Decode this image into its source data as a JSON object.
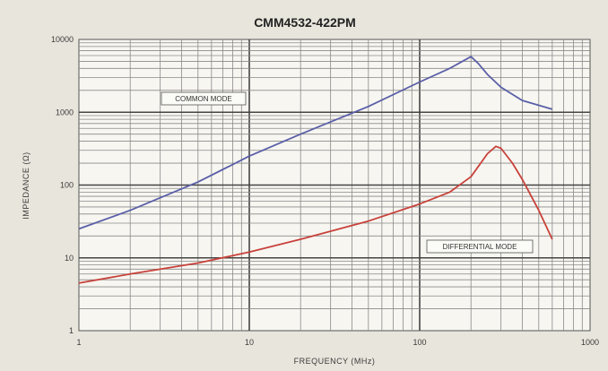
{
  "chart_data": {
    "type": "line",
    "title": "CMM4532-422PM",
    "xlabel": "FREQUENCY (MHz)",
    "ylabel": "IMPEDANCE (Ω)",
    "xscale": "log",
    "yscale": "log",
    "xlim": [
      1,
      1000
    ],
    "ylim": [
      1,
      10000
    ],
    "x_ticks": [
      "1",
      "10",
      "100",
      "1000"
    ],
    "y_ticks": [
      "1",
      "10",
      "100",
      "1000",
      "10000"
    ],
    "grid": true,
    "series": [
      {
        "name": "COMMON MODE",
        "color": "#5a5fa8",
        "x": [
          1,
          2,
          5,
          10,
          20,
          50,
          100,
          150,
          200,
          220,
          250,
          300,
          400,
          600
        ],
        "y": [
          25,
          45,
          110,
          250,
          500,
          1200,
          2600,
          4000,
          5800,
          4700,
          3300,
          2200,
          1450,
          1100
        ]
      },
      {
        "name": "DIFFERENTIAL MODE",
        "color": "#c8423a",
        "x": [
          1,
          2,
          5,
          10,
          20,
          50,
          100,
          150,
          200,
          250,
          280,
          300,
          350,
          400,
          500,
          600
        ],
        "y": [
          4.5,
          6,
          8.5,
          12,
          18,
          32,
          55,
          80,
          130,
          270,
          340,
          320,
          200,
          120,
          45,
          18
        ]
      }
    ]
  }
}
